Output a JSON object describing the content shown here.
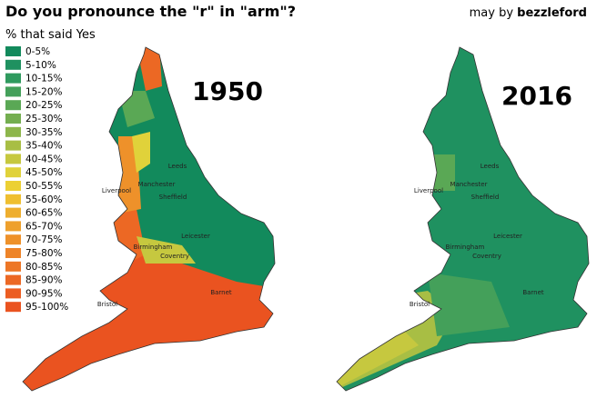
{
  "header": {
    "title": "Do you pronounce the \"r\" in \"arm\"?",
    "credit_prefix": "may by",
    "credit_author": "bezzleford"
  },
  "legend": {
    "title": "% that said Yes",
    "items": [
      {
        "label": "0-5%",
        "color": "#128a5c"
      },
      {
        "label": "5-10%",
        "color": "#1f9160"
      },
      {
        "label": "10-15%",
        "color": "#2f9a5e"
      },
      {
        "label": "15-20%",
        "color": "#44a05a"
      },
      {
        "label": "20-25%",
        "color": "#5aa855"
      },
      {
        "label": "25-30%",
        "color": "#74ae50"
      },
      {
        "label": "30-35%",
        "color": "#8db64b"
      },
      {
        "label": "35-40%",
        "color": "#a8be44"
      },
      {
        "label": "40-45%",
        "color": "#c6c83f"
      },
      {
        "label": "45-50%",
        "color": "#e0d23a"
      },
      {
        "label": "50-55%",
        "color": "#ecd034"
      },
      {
        "label": "55-60%",
        "color": "#efbf30"
      },
      {
        "label": "60-65%",
        "color": "#eeae2e"
      },
      {
        "label": "65-70%",
        "color": "#eea02c"
      },
      {
        "label": "70-75%",
        "color": "#ee912a"
      },
      {
        "label": "75-80%",
        "color": "#ee8428"
      },
      {
        "label": "80-85%",
        "color": "#ed7626"
      },
      {
        "label": "85-90%",
        "color": "#ec6824"
      },
      {
        "label": "90-95%",
        "color": "#ec5d22"
      },
      {
        "label": "95-100%",
        "color": "#ea5320"
      }
    ]
  },
  "maps": [
    {
      "year": "1950",
      "cities": [
        "Leeds",
        "Manchester",
        "Liverpool",
        "Sheffield",
        "Leicester",
        "Birmingham",
        "Coventry",
        "Barnet",
        "Bristol"
      ]
    },
    {
      "year": "2016",
      "cities": [
        "Leeds",
        "Manchester",
        "Liverpool",
        "Sheffield",
        "Leicester",
        "Birmingham",
        "Coventry",
        "Barnet",
        "Bristol"
      ]
    }
  ]
}
